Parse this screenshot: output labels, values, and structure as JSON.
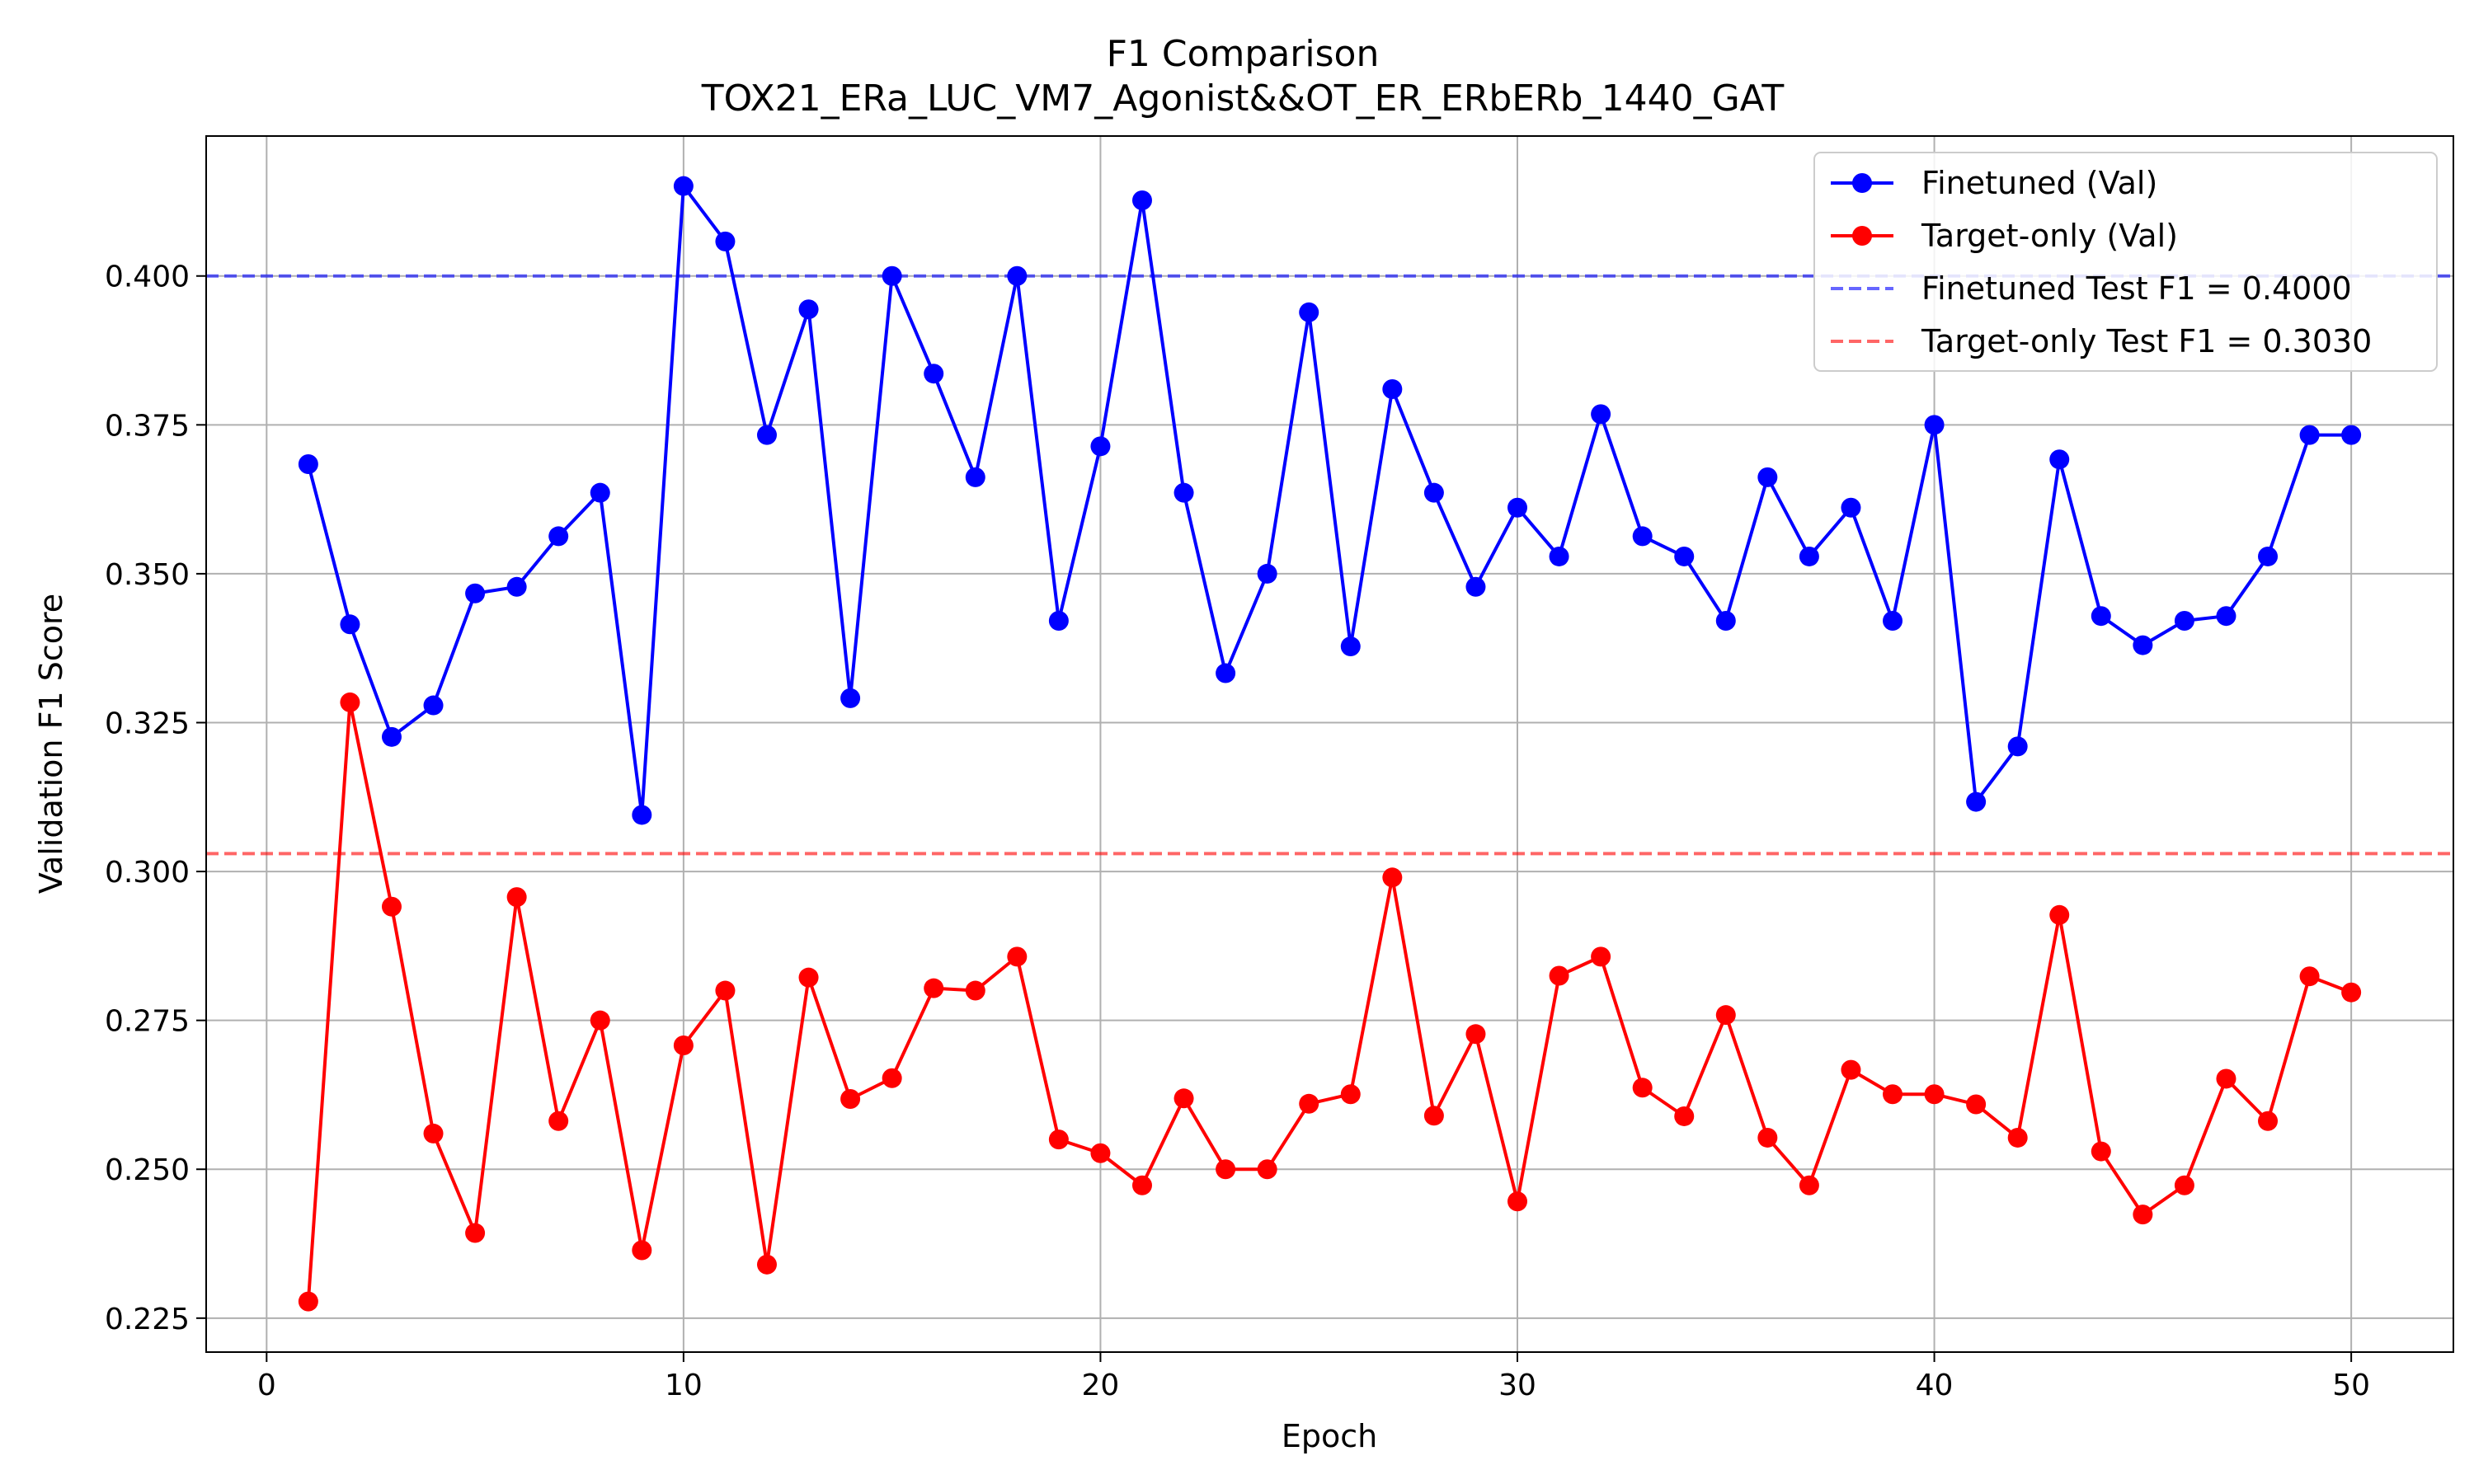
{
  "chart_data": {
    "type": "line",
    "title": "F1 Comparison",
    "subtitle": "TOX21_ERa_LUC_VM7_Agonist&&OT_ER_ERbERb_1440_GAT",
    "xlabel": "Epoch",
    "ylabel": "Validation F1 Score",
    "xlim": [
      -1.45,
      52.45
    ],
    "ylim": [
      0.2193,
      0.4235
    ],
    "xticks": [
      0,
      10,
      20,
      30,
      40,
      50
    ],
    "xtick_labels": [
      "0",
      "10",
      "20",
      "30",
      "40",
      "50"
    ],
    "yticks": [
      0.225,
      0.25,
      0.275,
      0.3,
      0.325,
      0.35,
      0.375,
      0.4
    ],
    "ytick_labels": [
      "0.225",
      "0.250",
      "0.275",
      "0.300",
      "0.325",
      "0.350",
      "0.375",
      "0.400"
    ],
    "grid": true,
    "legend_position": "top-right",
    "x": [
      1,
      2,
      3,
      4,
      5,
      6,
      7,
      8,
      9,
      10,
      11,
      12,
      13,
      14,
      15,
      16,
      17,
      18,
      19,
      20,
      21,
      22,
      23,
      24,
      25,
      26,
      27,
      28,
      29,
      30,
      31,
      32,
      33,
      34,
      35,
      36,
      37,
      38,
      39,
      40,
      41,
      42,
      43,
      44,
      45,
      46,
      47,
      48,
      49,
      50
    ],
    "series": [
      {
        "name": "Finetuned (Val)",
        "color": "#0000ff",
        "values": [
          0.3684,
          0.3415,
          0.3226,
          0.3279,
          0.3467,
          0.3478,
          0.3563,
          0.3636,
          0.3095,
          0.4151,
          0.4058,
          0.3733,
          0.3944,
          0.3291,
          0.4,
          0.3836,
          0.3662,
          0.4,
          0.3421,
          0.3714,
          0.4127,
          0.3636,
          0.3333,
          0.35,
          0.3939,
          0.3378,
          0.381,
          0.3636,
          0.3478,
          0.3611,
          0.3529,
          0.3768,
          0.3563,
          0.3529,
          0.3421,
          0.3662,
          0.3529,
          0.3611,
          0.3421,
          0.375,
          0.3117,
          0.321,
          0.3692,
          0.3429,
          0.338,
          0.3421,
          0.3429,
          0.3529,
          0.3733,
          0.3733
        ]
      },
      {
        "name": "Target-only (Val)",
        "color": "#ff0000",
        "values": [
          0.2278,
          0.3284,
          0.2941,
          0.256,
          0.2393,
          0.2957,
          0.2581,
          0.275,
          0.2364,
          0.2708,
          0.28,
          0.234,
          0.2822,
          0.2618,
          0.2653,
          0.2804,
          0.28,
          0.2857,
          0.255,
          0.2527,
          0.2473,
          0.2619,
          0.25,
          0.25,
          0.261,
          0.2626,
          0.299,
          0.259,
          0.2727,
          0.2446,
          0.2825,
          0.2857,
          0.2637,
          0.2589,
          0.2759,
          0.2553,
          0.2473,
          0.2667,
          0.2626,
          0.2626,
          0.2609,
          0.2553,
          0.2927,
          0.253,
          0.2424,
          0.2473,
          0.2652,
          0.2581,
          0.2824,
          0.2797
        ]
      }
    ],
    "reference_lines": [
      {
        "name": "Finetuned Test F1 = 0.4000",
        "value": 0.4,
        "color": "#0000ff",
        "opacity": 0.6,
        "style": "dashed"
      },
      {
        "name": "Target-only Test F1 = 0.3030",
        "value": 0.303,
        "color": "#ff0000",
        "opacity": 0.6,
        "style": "dashed"
      }
    ]
  }
}
